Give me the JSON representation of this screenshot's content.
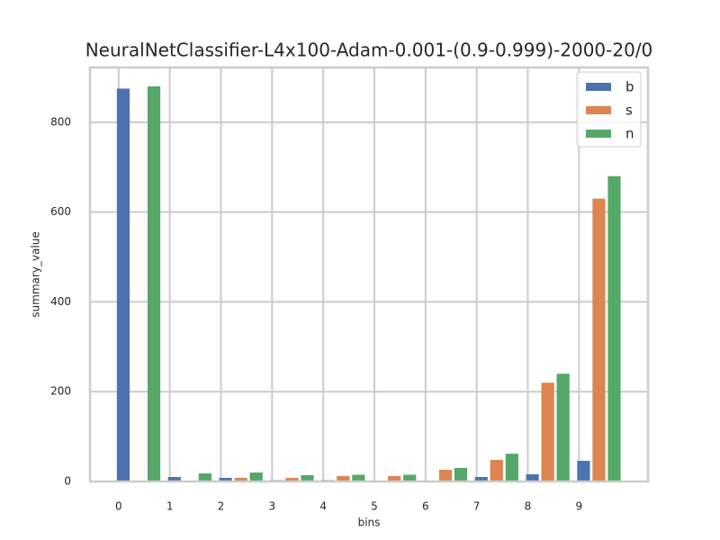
{
  "chart_data": {
    "type": "bar",
    "title": "NeuralNetClassifier-L4x100-Adam-0.001-(0.9-0.999)-2000-20/0",
    "x_label": "bins",
    "y_label": "summary_value",
    "xlim": [
      -0.56,
      10.35
    ],
    "xticks": [
      0,
      1,
      2,
      3,
      4,
      5,
      6,
      7,
      8,
      9
    ],
    "ylim": [
      0,
      922
    ],
    "yticks": [
      0,
      200,
      400,
      600,
      800
    ],
    "grid": true,
    "legend": "upper right",
    "series": [
      {
        "name": "b",
        "color": "#4c72b0",
        "values": [
          875,
          10,
          8,
          3,
          3,
          2,
          2,
          10,
          16,
          46
        ]
      },
      {
        "name": "s",
        "color": "#dd8452",
        "values": [
          0,
          2,
          8,
          8,
          12,
          12,
          26,
          48,
          220,
          630
        ]
      },
      {
        "name": "n",
        "color": "#55a868",
        "values": [
          880,
          18,
          20,
          14,
          15,
          15,
          30,
          62,
          240,
          680
        ]
      }
    ]
  }
}
